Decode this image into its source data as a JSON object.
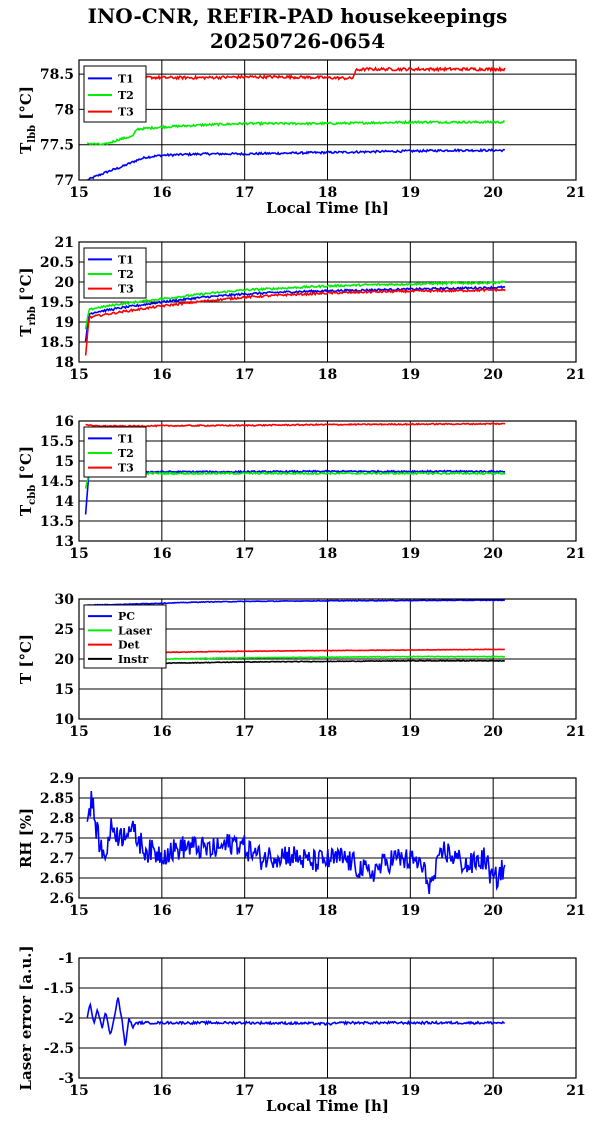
{
  "header": {
    "title_line1": "INO-CNR, REFIR-PAD housekeepings",
    "title_line2": "20250726-0654"
  },
  "chart_data": [
    {
      "type": "line",
      "id": "tlbb",
      "ylabel_main": "T",
      "ylabel_sub": "lbb",
      "ylabel_unit": " [°C]",
      "xlabel": "Local Time [h]",
      "xlim": [
        15,
        21
      ],
      "ylim": [
        77,
        78.7
      ],
      "xticks": [
        "15",
        "16",
        "17",
        "18",
        "19",
        "20",
        "21"
      ],
      "yticks": [
        "77",
        "77.5",
        "78",
        "78.5"
      ],
      "ytick_values": [
        77,
        77.5,
        78,
        78.5
      ],
      "legend": "top-left",
      "grid": true,
      "series": [
        {
          "name": "T1",
          "color": "#0000ff",
          "x": [
            15.1,
            15.2,
            15.35,
            15.5,
            15.6,
            15.7,
            15.8,
            16,
            16.5,
            17,
            17.5,
            18,
            18.5,
            19,
            19.5,
            20,
            20.15
          ],
          "y": [
            77.0,
            77.05,
            77.12,
            77.18,
            77.23,
            77.28,
            77.32,
            77.35,
            77.37,
            77.37,
            77.38,
            77.39,
            77.4,
            77.41,
            77.42,
            77.42,
            77.42
          ],
          "noise": 0.015
        },
        {
          "name": "T2",
          "color": "#00ee00",
          "x": [
            15.1,
            15.3,
            15.5,
            15.65,
            15.7,
            16,
            16.5,
            17,
            17.5,
            18,
            18.5,
            19,
            19.5,
            20,
            20.15
          ],
          "y": [
            77.52,
            77.5,
            77.58,
            77.62,
            77.72,
            77.75,
            77.78,
            77.8,
            77.8,
            77.8,
            77.81,
            77.82,
            77.82,
            77.82,
            77.82
          ],
          "noise": 0.015
        },
        {
          "name": "T3",
          "color": "#ff0000",
          "x": [
            15.1,
            15.3,
            15.5,
            16,
            16.5,
            17,
            17.5,
            18,
            18.3,
            18.35,
            18.5,
            19,
            19.5,
            20,
            20.15
          ],
          "y": [
            78.55,
            78.48,
            78.46,
            78.45,
            78.45,
            78.46,
            78.46,
            78.45,
            78.44,
            78.56,
            78.57,
            78.57,
            78.57,
            78.57,
            78.57
          ],
          "noise": 0.02
        }
      ]
    },
    {
      "type": "line",
      "id": "trbb",
      "ylabel_main": "T",
      "ylabel_sub": "rbb",
      "ylabel_unit": " [°C]",
      "xlabel": "",
      "xlim": [
        15,
        21
      ],
      "ylim": [
        18,
        21
      ],
      "xticks": [
        "15",
        "16",
        "17",
        "18",
        "19",
        "20",
        "21"
      ],
      "yticks": [
        "18",
        "18.5",
        "19",
        "19.5",
        "20",
        "20.5",
        "21"
      ],
      "ytick_values": [
        18,
        18.5,
        19,
        19.5,
        20,
        20.5,
        21
      ],
      "legend": "top-left",
      "grid": true,
      "series": [
        {
          "name": "T1",
          "color": "#0000ff",
          "x": [
            15.08,
            15.12,
            15.2,
            15.5,
            16,
            16.5,
            17,
            17.5,
            18,
            18.5,
            19,
            19.5,
            20,
            20.15
          ],
          "y": [
            18.5,
            19.2,
            19.25,
            19.35,
            19.5,
            19.62,
            19.7,
            19.75,
            19.78,
            19.8,
            19.82,
            19.84,
            19.86,
            19.87
          ],
          "noise": 0.025
        },
        {
          "name": "T2",
          "color": "#00ee00",
          "x": [
            15.08,
            15.12,
            15.2,
            15.5,
            16,
            16.5,
            17,
            17.5,
            18,
            18.5,
            19,
            19.5,
            20,
            20.15
          ],
          "y": [
            18.8,
            19.3,
            19.35,
            19.45,
            19.58,
            19.7,
            19.8,
            19.85,
            19.9,
            19.93,
            19.95,
            19.97,
            19.98,
            20.0
          ],
          "noise": 0.025
        },
        {
          "name": "T3",
          "color": "#ff0000",
          "x": [
            15.08,
            15.12,
            15.2,
            15.5,
            16,
            16.5,
            17,
            17.5,
            18,
            18.5,
            19,
            19.5,
            20,
            20.15
          ],
          "y": [
            18.15,
            19.1,
            19.15,
            19.25,
            19.4,
            19.52,
            19.62,
            19.68,
            19.72,
            19.75,
            19.77,
            19.78,
            19.8,
            19.8
          ],
          "noise": 0.025
        }
      ]
    },
    {
      "type": "line",
      "id": "tcbb",
      "ylabel_main": "T",
      "ylabel_sub": "cbb",
      "ylabel_unit": " [°C]",
      "xlabel": "",
      "xlim": [
        15,
        21
      ],
      "ylim": [
        13,
        16
      ],
      "xticks": [
        "15",
        "16",
        "17",
        "18",
        "19",
        "20",
        "21"
      ],
      "yticks": [
        "13",
        "13.5",
        "14",
        "14.5",
        "15",
        "15.5",
        "16"
      ],
      "ytick_values": [
        13,
        13.5,
        14,
        14.5,
        15,
        15.5,
        16
      ],
      "legend": "top-left",
      "grid": true,
      "series": [
        {
          "name": "T1",
          "color": "#0000ff",
          "x": [
            15.08,
            15.12,
            15.2,
            16,
            17,
            18,
            19,
            20,
            20.15
          ],
          "y": [
            13.65,
            14.72,
            14.73,
            14.73,
            14.73,
            14.74,
            14.74,
            14.74,
            14.74
          ],
          "noise": 0.02
        },
        {
          "name": "T2",
          "color": "#00ee00",
          "x": [
            15.08,
            15.12,
            15.2,
            16,
            17,
            18,
            19,
            20,
            20.15
          ],
          "y": [
            14.3,
            14.7,
            14.7,
            14.69,
            14.69,
            14.69,
            14.69,
            14.69,
            14.69
          ],
          "noise": 0.02
        },
        {
          "name": "T3",
          "color": "#ff0000",
          "x": [
            15.08,
            15.15,
            15.5,
            16,
            17,
            18,
            19,
            20,
            20.15
          ],
          "y": [
            15.92,
            15.88,
            15.87,
            15.88,
            15.89,
            15.91,
            15.92,
            15.93,
            15.93
          ],
          "noise": 0.015
        }
      ]
    },
    {
      "type": "line",
      "id": "temps",
      "ylabel_main": "T [°C]",
      "ylabel_sub": "",
      "ylabel_unit": "",
      "xlabel": "",
      "xlim": [
        15,
        21
      ],
      "ylim": [
        10,
        30
      ],
      "xticks": [
        "15",
        "16",
        "17",
        "18",
        "19",
        "20",
        "21"
      ],
      "yticks": [
        "10",
        "15",
        "20",
        "25",
        "30"
      ],
      "ytick_values": [
        10,
        15,
        20,
        25,
        30
      ],
      "legend": "top-left",
      "grid": true,
      "series": [
        {
          "name": "PC",
          "color": "#0000ff",
          "x": [
            15.1,
            15.5,
            16,
            16.5,
            17,
            18,
            19,
            20,
            20.15
          ],
          "y": [
            29.0,
            29.1,
            29.3,
            29.5,
            29.6,
            29.7,
            29.75,
            29.8,
            29.8
          ],
          "noise": 0.05
        },
        {
          "name": "Laser",
          "color": "#00ee00",
          "x": [
            15.1,
            15.5,
            16,
            17,
            18,
            19,
            20,
            20.15
          ],
          "y": [
            19.5,
            19.8,
            20.0,
            20.2,
            20.3,
            20.4,
            20.4,
            20.4
          ],
          "noise": 0.05
        },
        {
          "name": "Det",
          "color": "#ff0000",
          "x": [
            15.1,
            15.5,
            16,
            17,
            18,
            19,
            20,
            20.15
          ],
          "y": [
            20.8,
            21.0,
            21.1,
            21.3,
            21.4,
            21.5,
            21.6,
            21.6
          ],
          "noise": 0.04
        },
        {
          "name": "Instr",
          "color": "#000000",
          "x": [
            15.1,
            15.5,
            16,
            17,
            18,
            19,
            20,
            20.15
          ],
          "y": [
            18.9,
            19.1,
            19.3,
            19.5,
            19.6,
            19.7,
            19.7,
            19.7
          ],
          "noise": 0.05
        }
      ]
    },
    {
      "type": "line",
      "id": "rh",
      "ylabel_main": "RH [%]",
      "ylabel_sub": "",
      "ylabel_unit": "",
      "xlabel": "",
      "xlim": [
        15,
        21
      ],
      "ylim": [
        2.6,
        2.9
      ],
      "xticks": [
        "15",
        "16",
        "17",
        "18",
        "19",
        "20",
        "21"
      ],
      "yticks": [
        "2.6",
        "2.65",
        "2.7",
        "2.75",
        "2.8",
        "2.85",
        "2.9"
      ],
      "ytick_values": [
        2.6,
        2.65,
        2.7,
        2.75,
        2.8,
        2.85,
        2.9
      ],
      "legend": "none",
      "grid": true,
      "series": [
        {
          "name": "",
          "color": "#0000ff",
          "x": [
            15.1,
            15.15,
            15.22,
            15.3,
            15.4,
            15.5,
            15.6,
            15.8,
            16,
            16.3,
            16.6,
            16.9,
            17.2,
            17.5,
            17.8,
            18.2,
            18.5,
            18.8,
            19.1,
            19.25,
            19.4,
            19.7,
            19.9,
            20.0,
            20.15
          ],
          "y": [
            2.79,
            2.85,
            2.76,
            2.7,
            2.78,
            2.75,
            2.78,
            2.72,
            2.71,
            2.73,
            2.72,
            2.74,
            2.7,
            2.71,
            2.69,
            2.7,
            2.66,
            2.7,
            2.69,
            2.63,
            2.72,
            2.68,
            2.7,
            2.64,
            2.68
          ],
          "noise": 0.03
        }
      ]
    },
    {
      "type": "line",
      "id": "laser",
      "ylabel_main": "Laser error [a.u.]",
      "ylabel_sub": "",
      "ylabel_unit": "",
      "xlabel": "Local Time [h]",
      "xlim": [
        15,
        21
      ],
      "ylim": [
        -3,
        -1
      ],
      "xticks": [
        "15",
        "16",
        "17",
        "18",
        "19",
        "20",
        "21"
      ],
      "yticks": [
        "-3",
        "-2.5",
        "-2",
        "-1.5",
        "-1"
      ],
      "ytick_values": [
        -3,
        -2.5,
        -2,
        -1.5,
        -1
      ],
      "legend": "none",
      "grid": true,
      "series": [
        {
          "name": "",
          "color": "#0000ff",
          "x": [
            15.1,
            15.13,
            15.18,
            15.22,
            15.28,
            15.32,
            15.38,
            15.43,
            15.47,
            15.52,
            15.56,
            15.6,
            15.65,
            15.7,
            16,
            17,
            17.8,
            18,
            18.2,
            19,
            20,
            20.15
          ],
          "y": [
            -2.0,
            -1.75,
            -2.1,
            -1.85,
            -2.15,
            -1.9,
            -2.3,
            -1.95,
            -1.65,
            -2.05,
            -2.5,
            -2.0,
            -2.15,
            -2.08,
            -2.08,
            -2.08,
            -2.09,
            -2.1,
            -2.08,
            -2.08,
            -2.08,
            -2.08
          ],
          "noise": 0.02
        }
      ]
    }
  ]
}
